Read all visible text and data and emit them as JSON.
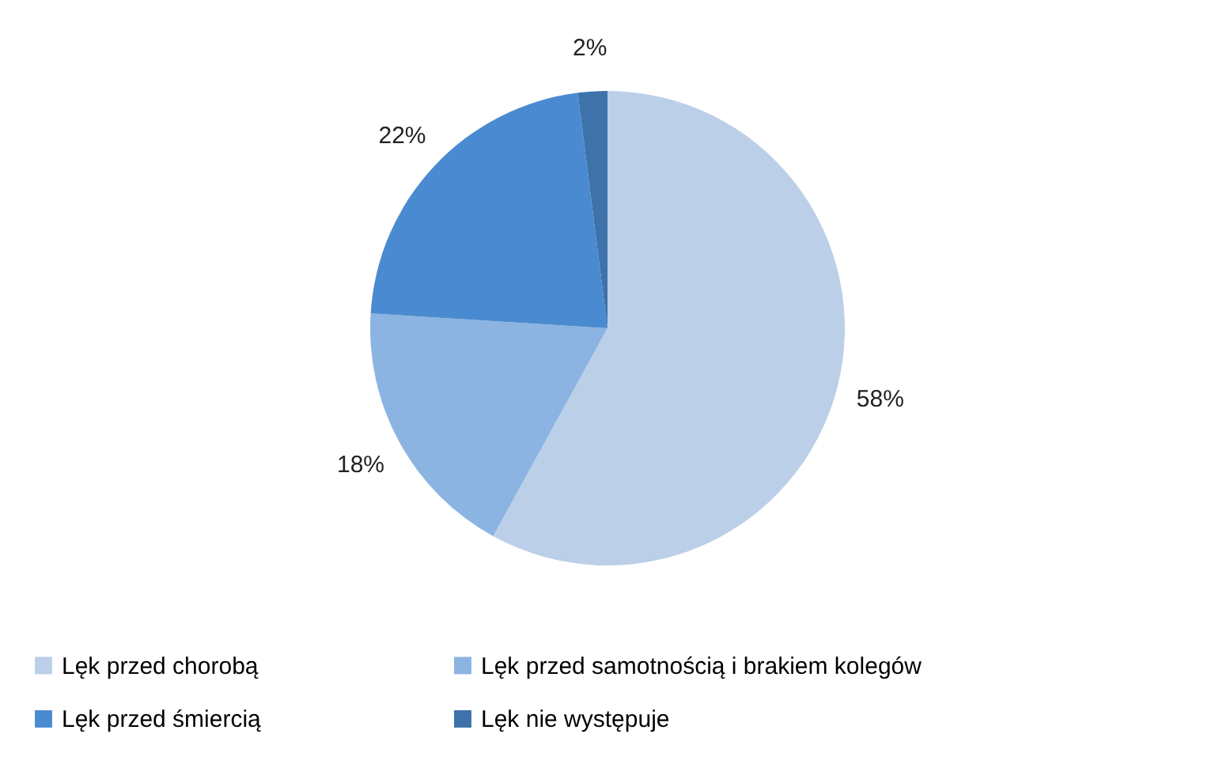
{
  "chart_data": {
    "type": "pie",
    "categories": [
      "Lęk przed chorobą",
      "Lęk przed samotnością i brakiem kolegów",
      "Lęk przed śmiercią",
      "Lęk nie występuje"
    ],
    "values": [
      58,
      18,
      22,
      2
    ],
    "colors": [
      "#bccfe8",
      "#8cb4e2",
      "#4a8ad0",
      "#3d72aa"
    ],
    "value_labels": [
      "58%",
      "18%",
      "22%",
      "2%"
    ],
    "legend": "bottom"
  }
}
